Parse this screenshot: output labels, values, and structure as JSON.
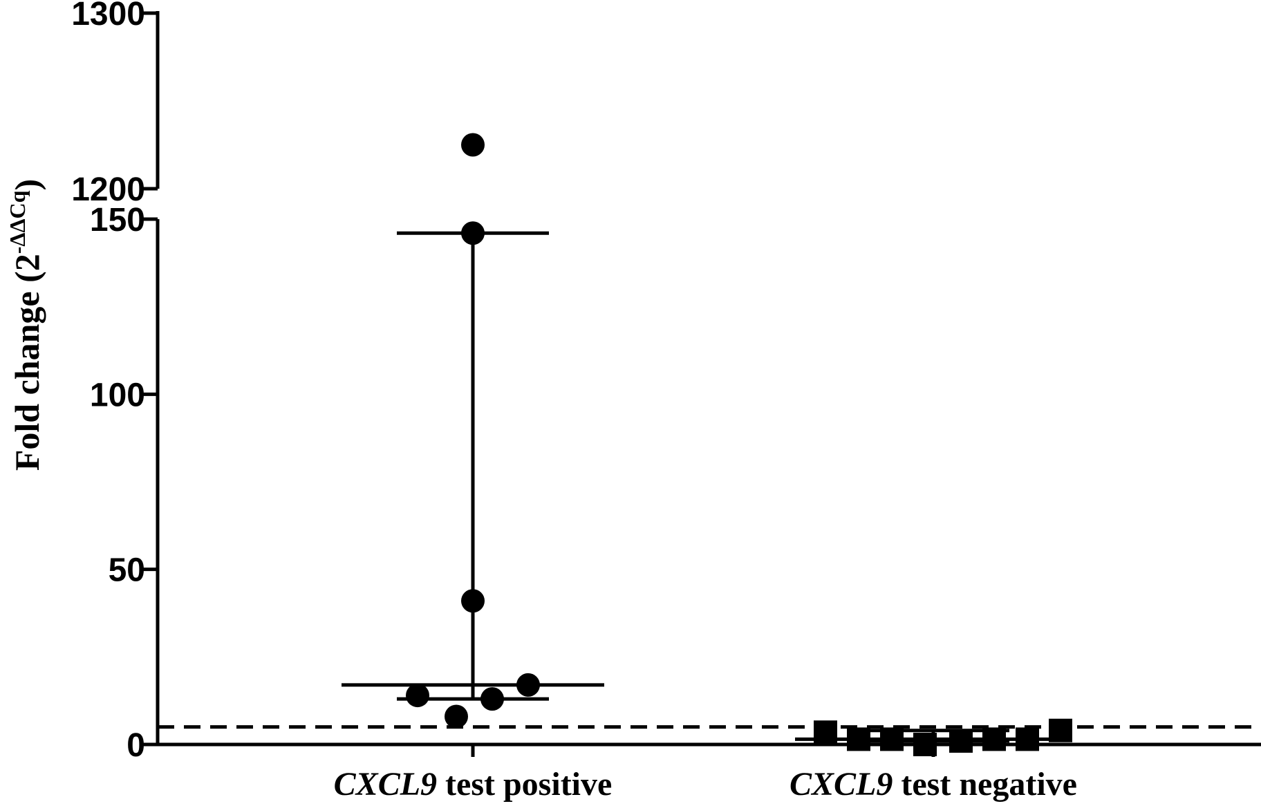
{
  "chart_data": {
    "type": "scatter",
    "title": "",
    "ylabel": {
      "main": "Fold change (2",
      "superscript": "-ΔΔCq",
      "close": ")"
    },
    "y_axis": {
      "broken": true,
      "lower_segment": {
        "range": [
          0,
          150
        ],
        "ticks": [
          "0",
          "50",
          "100",
          "150"
        ]
      },
      "upper_segment": {
        "range": [
          1200,
          1300
        ],
        "ticks": [
          "1200",
          "1300"
        ]
      }
    },
    "threshold_line": {
      "value": 5,
      "style": "dashed"
    },
    "groups": [
      {
        "label_gene": "CXCL9",
        "label_rest": " test positive",
        "marker": "circle",
        "values": [
          1225,
          146,
          41,
          17,
          14,
          13,
          8
        ],
        "jitter": [
          0,
          0,
          0,
          1,
          -1,
          0.35,
          -0.3
        ],
        "median": 17,
        "range": [
          13,
          146
        ]
      },
      {
        "label_gene": "CXCL9",
        "label_rest": " test negative",
        "marker": "square",
        "values": [
          3.5,
          1.5,
          1.5,
          0,
          1,
          1.5,
          1.5,
          4
        ],
        "jitter": [
          -1.95,
          -1.35,
          -0.75,
          -0.15,
          0.5,
          1.1,
          1.7,
          2.3
        ],
        "median": 1.5,
        "range": [
          1,
          4
        ]
      }
    ]
  }
}
